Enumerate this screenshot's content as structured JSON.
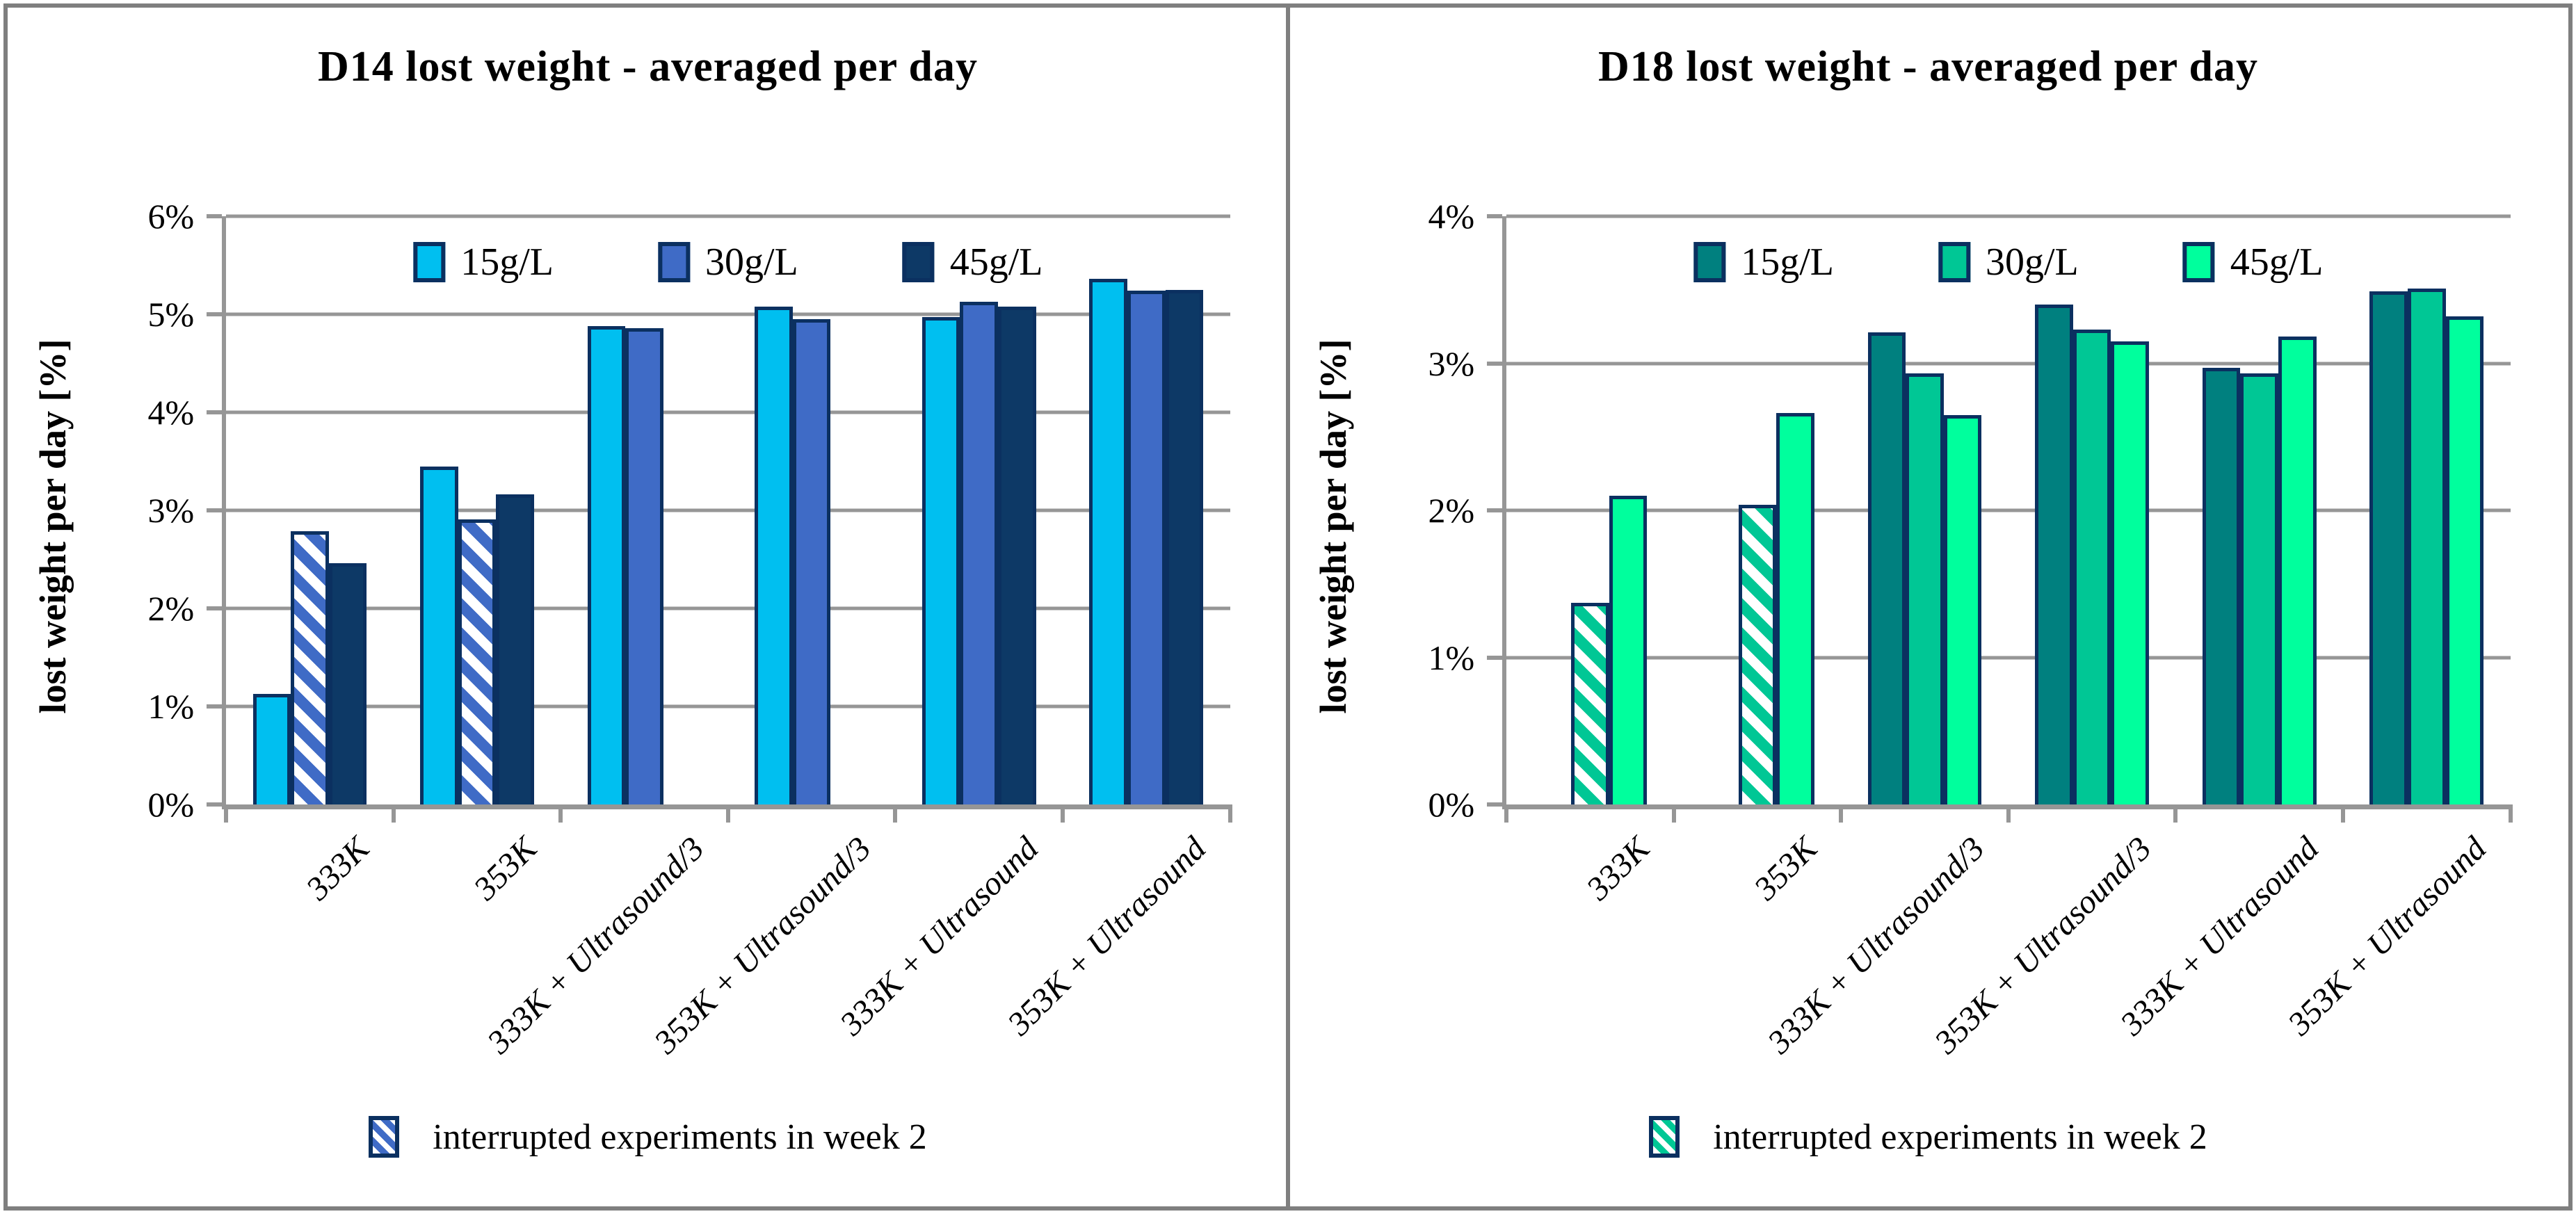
{
  "colors": {
    "frame": "#7f7f7f",
    "grid": "#969696",
    "axis": "#969696",
    "bar_border": "#0b3060"
  },
  "chart_data": [
    {
      "type": "bar",
      "title": "D14 lost weight - averaged per day",
      "ylabel": "lost weight per day [%]",
      "ylim": [
        0,
        6
      ],
      "y_tick_labels": [
        "0%",
        "1%",
        "2%",
        "3%",
        "4%",
        "5%",
        "6%"
      ],
      "grid": true,
      "legend_position": "top-inside",
      "categories": [
        "333K",
        "353K",
        "333K + Ultrasound/3",
        "353K + Ultrasound/3",
        "333K + Ultrasound",
        "353K + Ultrasound"
      ],
      "series": [
        {
          "name": "15g/L",
          "color": "#00bff0",
          "values": [
            1.13,
            3.45,
            4.88,
            5.08,
            4.97,
            5.36
          ]
        },
        {
          "name": "30g/L",
          "color": "#3f6bc6",
          "values": [
            2.79,
            2.91,
            4.86,
            4.95,
            5.13,
            5.24
          ]
        },
        {
          "name": "45g/L",
          "color": "#0d3966",
          "values": [
            2.46,
            3.16,
            null,
            null,
            5.08,
            5.25
          ]
        }
      ],
      "hatched_bars": [
        [
          0,
          1
        ],
        [
          1,
          1
        ]
      ],
      "note": "interrupted experiments in week 2"
    },
    {
      "type": "bar",
      "title": "D18 lost weight - averaged per day",
      "ylabel": "lost weight per day [%]",
      "ylim": [
        0,
        4
      ],
      "y_tick_labels": [
        "0%",
        "1%",
        "2%",
        "3%",
        "4%"
      ],
      "grid": true,
      "legend_position": "top-inside",
      "categories": [
        "333K",
        "353K",
        "333K + Ultrasound/3",
        "353K + Ultrasound/3",
        "333K + Ultrasound",
        "353K + Ultrasound"
      ],
      "series": [
        {
          "name": "15g/L",
          "color": "#00807f",
          "values": [
            null,
            null,
            3.21,
            3.4,
            2.97,
            3.49
          ]
        },
        {
          "name": "30g/L",
          "color": "#00c795",
          "values": [
            1.37,
            2.04,
            2.93,
            3.23,
            2.93,
            3.51
          ]
        },
        {
          "name": "45g/L",
          "color": "#00ff9d",
          "values": [
            2.1,
            2.66,
            2.65,
            3.15,
            3.18,
            3.32
          ]
        }
      ],
      "hatched_bars": [
        [
          0,
          1
        ],
        [
          1,
          1
        ]
      ],
      "note": "interrupted experiments in week 2"
    }
  ]
}
